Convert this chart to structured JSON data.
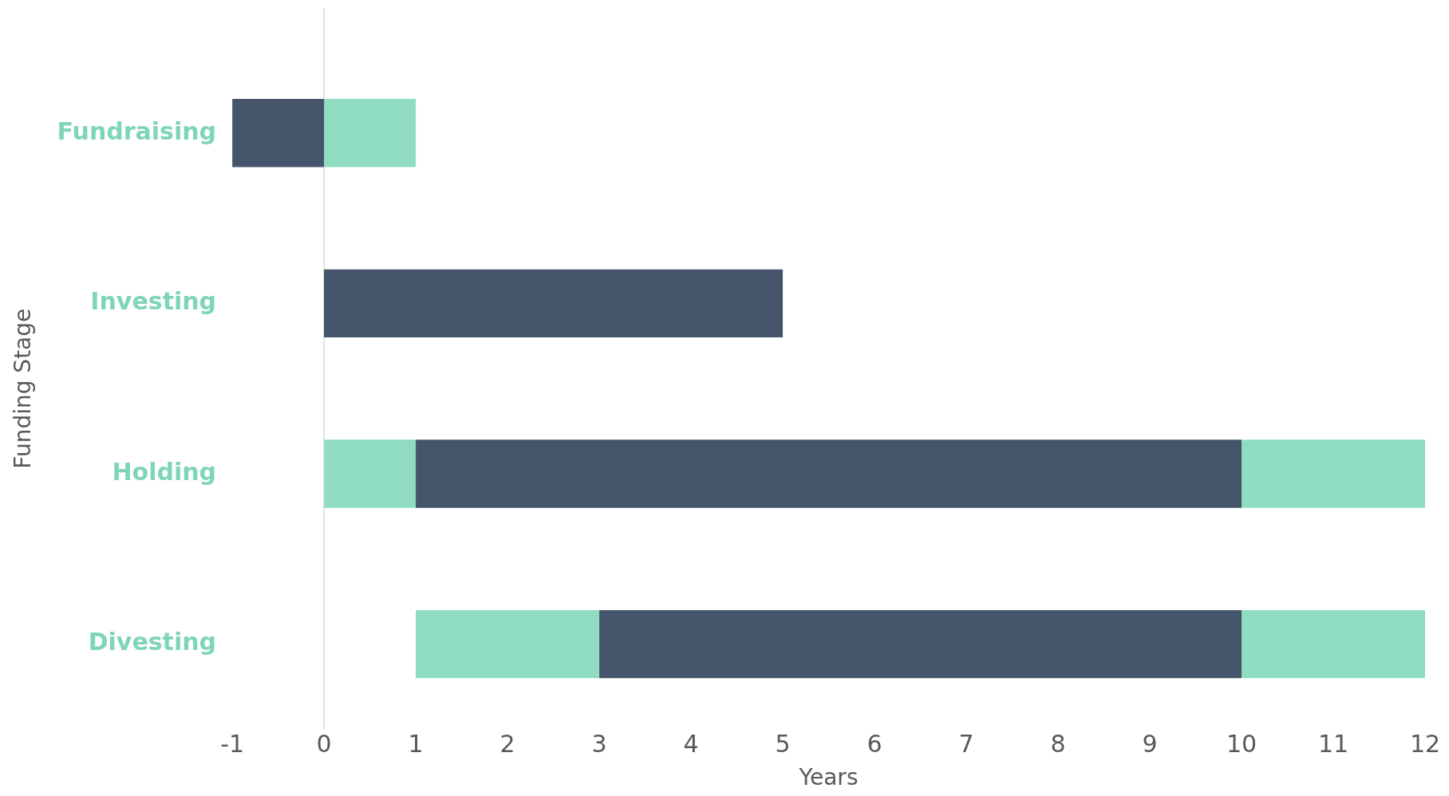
{
  "chart_data": {
    "type": "bar",
    "orientation": "horizontal",
    "xlabel": "Years",
    "ylabel": "Funding Stage",
    "categories": [
      "Fundraising",
      "Investing",
      "Holding",
      "Divesting"
    ],
    "series": [
      {
        "color": "#44546a",
        "base": [
          -1,
          0,
          1,
          3
        ],
        "values": [
          1,
          5,
          9,
          7
        ]
      },
      {
        "color": "#8fdcc0",
        "base": [
          0,
          null,
          0,
          1
        ],
        "values": [
          1,
          null,
          1,
          2
        ]
      },
      {
        "color": "#8fdcc0",
        "base": [
          null,
          null,
          10,
          10
        ],
        "values": [
          null,
          null,
          2,
          2
        ]
      }
    ],
    "xlim": [
      -1,
      12
    ],
    "xticks": [
      -1,
      0,
      1,
      2,
      3,
      4,
      5,
      6,
      7,
      8,
      9,
      10,
      11,
      12
    ],
    "ref_lines": [
      {
        "axis": "x",
        "value": 0,
        "color": "#d9d9d9"
      }
    ],
    "grid": false,
    "legend": false
  }
}
